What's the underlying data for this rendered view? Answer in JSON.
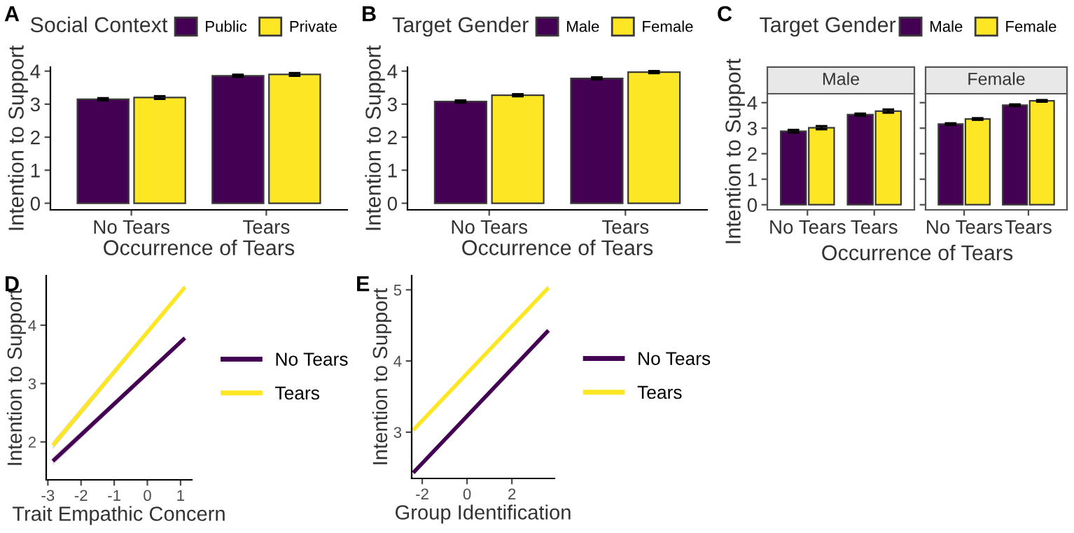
{
  "chart_data": [
    {
      "type": "bar",
      "annotations": [
        "A"
      ],
      "legend_title": "Social Context",
      "legend": "top",
      "xlabel": "Occurrence of Tears",
      "ylabel": "Intention to Support",
      "categories": [
        "No Tears",
        "Tears"
      ],
      "ylim": [
        -0.2,
        4.12
      ],
      "yticks": [
        0,
        1,
        2,
        3,
        4
      ],
      "grid": false,
      "series": [
        {
          "name": "Public",
          "color": "#440154",
          "values": [
            3.15,
            3.86
          ],
          "errors": [
            0.03,
            0.03
          ]
        },
        {
          "name": "Private",
          "color": "#fde725",
          "values": [
            3.2,
            3.9
          ],
          "errors": [
            0.04,
            0.04
          ]
        }
      ]
    },
    {
      "type": "bar",
      "annotations": [
        "B"
      ],
      "legend_title": "Target Gender",
      "legend": "top",
      "xlabel": "Occurrence of Tears",
      "ylabel": "Intention to Support",
      "categories": [
        "No Tears",
        "Tears"
      ],
      "ylim": [
        -0.2,
        4.12
      ],
      "yticks": [
        0,
        1,
        2,
        3,
        4
      ],
      "grid": false,
      "series": [
        {
          "name": "Male",
          "color": "#440154",
          "values": [
            3.08,
            3.78
          ],
          "errors": [
            0.03,
            0.03
          ]
        },
        {
          "name": "Female",
          "color": "#fde725",
          "values": [
            3.27,
            3.97
          ],
          "errors": [
            0.03,
            0.03
          ]
        }
      ]
    },
    {
      "type": "bar",
      "annotations": [
        "C"
      ],
      "title": "Male",
      "legend_title": "Target Gender",
      "legend": "top",
      "xlabel": "Occurrence of Tears",
      "ylabel": "Intention to Support",
      "categories": [
        "No Tears",
        "Tears"
      ],
      "ylim": [
        -0.2,
        4.35
      ],
      "yticks": [
        0,
        1,
        2,
        3,
        4
      ],
      "grid": false,
      "series": [
        {
          "name": "Male",
          "color": "#440154",
          "values": [
            2.88,
            3.53
          ],
          "errors": [
            0.05,
            0.04
          ]
        },
        {
          "name": "Female",
          "color": "#fde725",
          "values": [
            3.02,
            3.67
          ],
          "errors": [
            0.06,
            0.06
          ]
        }
      ]
    },
    {
      "type": "bar",
      "title": "Female",
      "categories": [
        "No Tears",
        "Tears"
      ],
      "ylim": [
        -0.2,
        4.35
      ],
      "yticks": [
        0,
        1,
        2,
        3,
        4
      ],
      "tick_labels": "x",
      "grid": false,
      "series": [
        {
          "color": "#440154",
          "values": [
            3.16,
            3.9
          ],
          "errors": [
            0.03,
            0.03
          ]
        },
        {
          "color": "#fde725",
          "values": [
            3.36,
            4.07
          ],
          "errors": [
            0.03,
            0.03
          ]
        }
      ]
    },
    {
      "type": "line",
      "annotations": [
        "D"
      ],
      "legend": "right",
      "xlabel": "Trait Empathic Concern",
      "ylabel": "Intention to Support",
      "xlim": [
        -3.05,
        1.34
      ],
      "xticks": [
        -3,
        -2,
        -1,
        0,
        1
      ],
      "ylim": [
        1.35,
        4.85
      ],
      "yticks": [
        2,
        3,
        4
      ],
      "grid": false,
      "series": [
        {
          "name": "No Tears",
          "color": "#440154",
          "x": [
            -2.85,
            1.13
          ],
          "values": [
            1.67,
            3.78
          ],
          "lower": [
            1.6,
            3.74
          ],
          "upper": [
            1.74,
            3.82
          ]
        },
        {
          "name": "Tears",
          "color": "#fde725",
          "x": [
            -2.85,
            1.13
          ],
          "values": [
            1.94,
            4.65
          ],
          "lower": [
            1.87,
            4.61
          ],
          "upper": [
            2.01,
            4.69
          ]
        }
      ]
    },
    {
      "type": "line",
      "annotations": [
        "E"
      ],
      "legend": "right",
      "xlabel": "Group Identification",
      "ylabel": "Intention to Support",
      "xlim": [
        -2.47,
        3.9
      ],
      "xticks": [
        -2,
        0,
        2
      ],
      "ylim": [
        2.35,
        5.2
      ],
      "yticks": [
        3,
        4,
        5
      ],
      "grid": false,
      "series": [
        {
          "name": "No Tears",
          "color": "#440154",
          "x": [
            -2.4,
            3.63
          ],
          "values": [
            2.43,
            4.43
          ],
          "lower": [
            2.4,
            4.4
          ],
          "upper": [
            2.46,
            4.46
          ]
        },
        {
          "name": "Tears",
          "color": "#fde725",
          "x": [
            -2.4,
            3.63
          ],
          "values": [
            3.03,
            5.03
          ],
          "lower": [
            3.0,
            5.0
          ],
          "upper": [
            3.06,
            5.06
          ]
        }
      ]
    }
  ]
}
